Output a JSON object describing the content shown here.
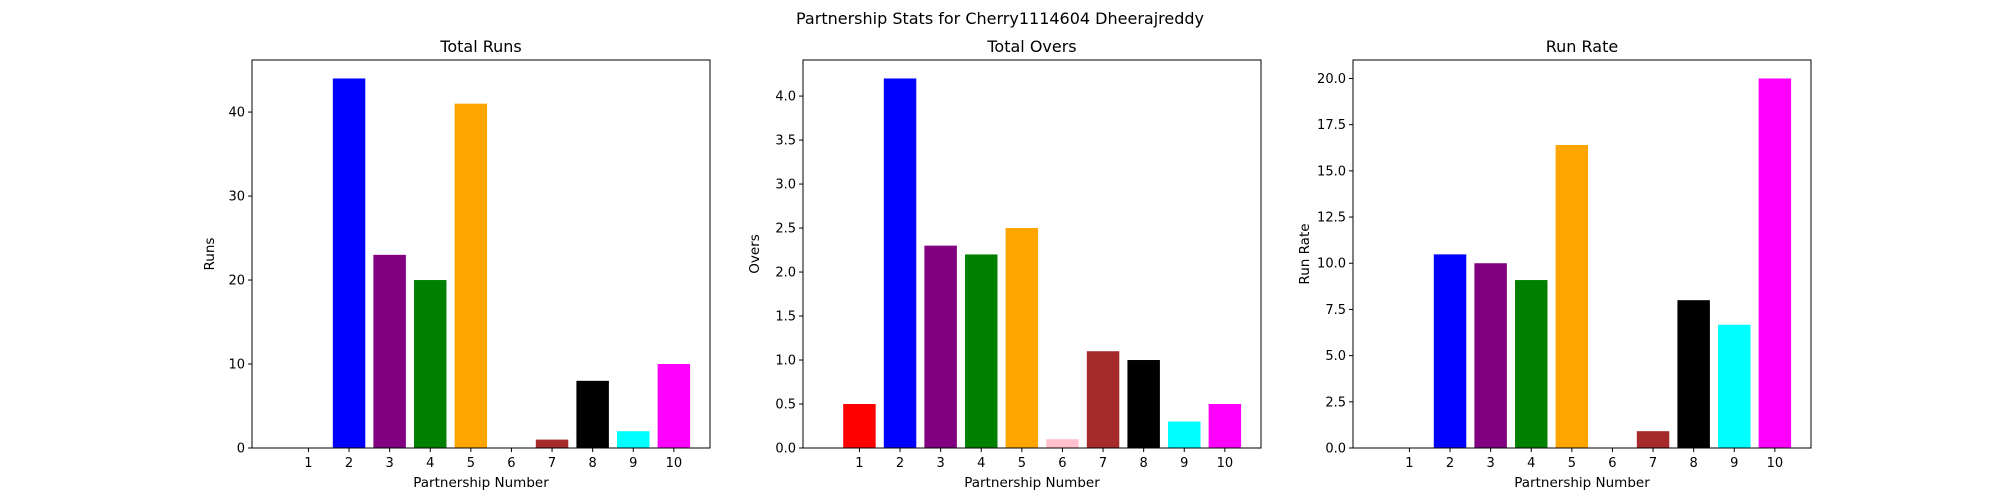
{
  "figure": {
    "suptitle": "Partnership Stats for Cherry1114604 Dheerajreddy"
  },
  "chart_data": [
    {
      "type": "bar",
      "title": "Total Runs",
      "xlabel": "Partnership Number",
      "ylabel": "Runs",
      "categories": [
        "1",
        "2",
        "3",
        "4",
        "5",
        "6",
        "7",
        "8",
        "9",
        "10"
      ],
      "values": [
        0,
        44,
        23,
        20,
        41,
        0,
        1,
        8,
        2,
        10
      ],
      "colors": [
        "#ff0000",
        "#0000ff",
        "#800080",
        "#008000",
        "#ffa500",
        "#ffc0cb",
        "#a52a2a",
        "#000000",
        "#00ffff",
        "#ff00ff"
      ],
      "ylim": [
        0,
        46.2
      ],
      "yticks": [
        0,
        10,
        20,
        30,
        40
      ],
      "ytick_labels": [
        "0",
        "10",
        "20",
        "30",
        "40"
      ],
      "grid": false
    },
    {
      "type": "bar",
      "title": "Total Overs",
      "xlabel": "Partnership Number",
      "ylabel": "Overs",
      "categories": [
        "1",
        "2",
        "3",
        "4",
        "5",
        "6",
        "7",
        "8",
        "9",
        "10"
      ],
      "values": [
        0.5,
        4.2,
        2.3,
        2.2,
        2.5,
        0.1,
        1.1,
        1.0,
        0.3,
        0.5
      ],
      "colors": [
        "#ff0000",
        "#0000ff",
        "#800080",
        "#008000",
        "#ffa500",
        "#ffc0cb",
        "#a52a2a",
        "#000000",
        "#00ffff",
        "#ff00ff"
      ],
      "ylim": [
        0,
        4.41
      ],
      "yticks": [
        0,
        0.5,
        1.0,
        1.5,
        2.0,
        2.5,
        3.0,
        3.5,
        4.0
      ],
      "ytick_labels": [
        "0.0",
        "0.5",
        "1.0",
        "1.5",
        "2.0",
        "2.5",
        "3.0",
        "3.5",
        "4.0"
      ],
      "grid": false
    },
    {
      "type": "bar",
      "title": "Run Rate",
      "xlabel": "Partnership Number",
      "ylabel": "Run Rate",
      "categories": [
        "1",
        "2",
        "3",
        "4",
        "5",
        "6",
        "7",
        "8",
        "9",
        "10"
      ],
      "values": [
        0,
        10.48,
        10.0,
        9.09,
        16.4,
        0,
        0.91,
        8.0,
        6.67,
        20.0
      ],
      "colors": [
        "#ff0000",
        "#0000ff",
        "#800080",
        "#008000",
        "#ffa500",
        "#ffc0cb",
        "#a52a2a",
        "#000000",
        "#00ffff",
        "#ff00ff"
      ],
      "ylim": [
        0,
        21.0
      ],
      "yticks": [
        0,
        2.5,
        5.0,
        7.5,
        10.0,
        12.5,
        15.0,
        17.5,
        20.0
      ],
      "ytick_labels": [
        "0.0",
        "2.5",
        "5.0",
        "7.5",
        "10.0",
        "12.5",
        "15.0",
        "17.5",
        "20.0"
      ],
      "grid": false
    }
  ]
}
